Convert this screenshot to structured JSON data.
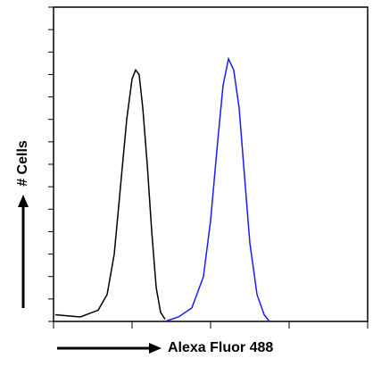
{
  "chart_data": {
    "type": "line",
    "x_label": "Alexa Fluor 488",
    "y_label": "# Cells",
    "xscale": "log",
    "xlim": [
      1,
      10000
    ],
    "xticks": [
      1,
      10,
      100,
      1000,
      10000
    ],
    "ylim": [
      0,
      140
    ],
    "yticks": [
      0,
      10,
      20,
      30,
      40,
      50,
      60,
      70,
      80,
      90,
      100,
      110,
      120,
      130,
      140
    ],
    "tick_labels": false,
    "series": [
      {
        "color": "#000000",
        "x": [
          1.05,
          2.19,
          3.7,
          4.81,
          5.93,
          7.12,
          8.55,
          10.0,
          11.1,
          12.3,
          13.7,
          15.6,
          17.8,
          20.3,
          23.1,
          26.3
        ],
        "values": [
          3,
          2,
          5,
          12,
          30,
          60,
          90,
          108,
          112,
          110,
          95,
          70,
          40,
          15,
          4,
          1
        ]
      },
      {
        "color": "#1a1aff",
        "x": [
          26.3,
          39.0,
          57.7,
          81.1,
          100,
          123,
          144,
          169,
          197,
          231,
          270,
          316,
          390,
          481,
          562
        ],
        "values": [
          0,
          2,
          6,
          20,
          45,
          80,
          105,
          117,
          112,
          95,
          65,
          35,
          12,
          3,
          0
        ]
      }
    ]
  }
}
